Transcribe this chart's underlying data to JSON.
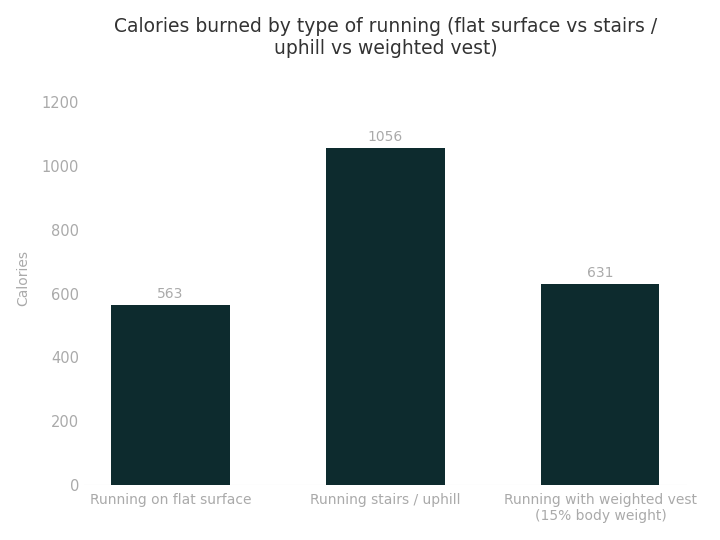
{
  "title": "Calories burned by type of running (flat surface vs stairs /\nuphill vs weighted vest)",
  "categories": [
    "Running on flat surface",
    "Running stairs / uphill",
    "Running with weighted vest\n(15% body weight)"
  ],
  "values": [
    563,
    1056,
    631
  ],
  "bar_color": "#0d2b2e",
  "ylabel": "Calories",
  "ylim": [
    0,
    1300
  ],
  "yticks": [
    0,
    200,
    400,
    600,
    800,
    1000,
    1200
  ],
  "bar_width": 0.55,
  "background_color": "#ffffff",
  "title_fontsize": 13.5,
  "label_fontsize": 10,
  "tick_fontsize": 10.5,
  "value_label_color": "#aaaaaa",
  "value_label_fontsize": 10,
  "tick_color": "#aaaaaa",
  "ylabel_color": "#aaaaaa",
  "title_color": "#333333"
}
